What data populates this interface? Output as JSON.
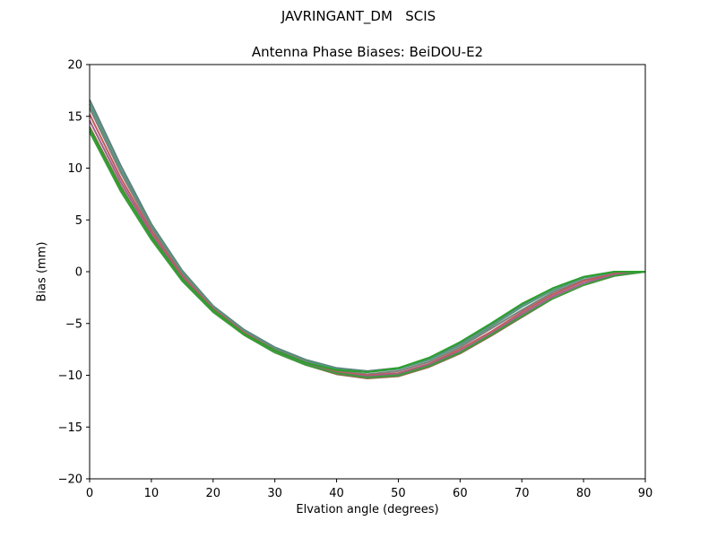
{
  "figure": {
    "suptitle": "JAVRINGANT_DM   SCIS"
  },
  "chart_data": {
    "type": "line",
    "title": "Antenna Phase Biases: BeiDOU-E2",
    "xlabel": "Elvation angle (degrees)",
    "ylabel": "Bias (mm)",
    "xlim": [
      0,
      90
    ],
    "ylim": [
      -20,
      20
    ],
    "xticks": [
      0,
      10,
      20,
      30,
      40,
      50,
      60,
      70,
      80,
      90
    ],
    "yticks": [
      -20,
      -15,
      -10,
      -5,
      0,
      5,
      10,
      15,
      20
    ],
    "xtick_labels": [
      "0",
      "10",
      "20",
      "30",
      "40",
      "50",
      "60",
      "70",
      "80",
      "90"
    ],
    "ytick_labels": [
      "−20",
      "−15",
      "−10",
      "−5",
      "0",
      "5",
      "10",
      "15",
      "20"
    ],
    "grid": false,
    "legend": "none",
    "x": [
      0,
      5,
      10,
      15,
      20,
      25,
      30,
      35,
      40,
      45,
      50,
      55,
      60,
      65,
      70,
      75,
      80,
      85,
      90
    ],
    "series": [
      {
        "color": "#5f7f7f",
        "values": [
          16.6,
          10.3,
          4.6,
          0.1,
          -3.3,
          -5.6,
          -7.3,
          -8.5,
          -9.3,
          -9.6,
          -9.3,
          -8.4,
          -6.9,
          -5.1,
          -3.2,
          -1.6,
          -0.5,
          0.0,
          0.0
        ]
      },
      {
        "color": "#4f9a7a",
        "values": [
          16.2,
          9.9,
          4.4,
          0.0,
          -3.4,
          -5.7,
          -7.4,
          -8.6,
          -9.4,
          -9.7,
          -9.4,
          -8.5,
          -7.1,
          -5.3,
          -3.4,
          -1.8,
          -0.6,
          -0.1,
          0.0
        ]
      },
      {
        "color": "#7f7f7f",
        "values": [
          15.8,
          9.6,
          4.2,
          -0.2,
          -3.5,
          -5.8,
          -7.5,
          -8.7,
          -9.6,
          -9.9,
          -9.6,
          -8.7,
          -7.3,
          -5.5,
          -3.7,
          -2.0,
          -0.8,
          -0.2,
          0.0
        ]
      },
      {
        "color": "#c05a5a",
        "values": [
          15.2,
          9.1,
          3.9,
          -0.4,
          -3.6,
          -5.9,
          -7.6,
          -8.8,
          -9.7,
          -10.0,
          -9.8,
          -8.9,
          -7.5,
          -5.8,
          -3.9,
          -2.2,
          -0.9,
          -0.2,
          0.0
        ]
      },
      {
        "color": "#a0608f",
        "values": [
          14.6,
          8.7,
          3.6,
          -0.6,
          -3.7,
          -6.0,
          -7.7,
          -8.9,
          -9.8,
          -10.1,
          -9.9,
          -9.0,
          -7.7,
          -6.0,
          -4.1,
          -2.4,
          -1.1,
          -0.3,
          0.0
        ]
      },
      {
        "color": "#8a6e4e",
        "values": [
          14.0,
          8.3,
          3.3,
          -0.8,
          -3.8,
          -6.1,
          -7.8,
          -9.0,
          -9.9,
          -10.3,
          -10.1,
          -9.2,
          -7.9,
          -6.2,
          -4.4,
          -2.6,
          -1.3,
          -0.4,
          0.0
        ]
      },
      {
        "color": "#3f9a3f",
        "values": [
          13.5,
          7.8,
          3.1,
          -0.9,
          -3.9,
          -6.1,
          -7.8,
          -9.0,
          -9.8,
          -10.2,
          -10.0,
          -9.1,
          -7.8,
          -6.1,
          -4.3,
          -2.6,
          -1.3,
          -0.4,
          0.0
        ]
      },
      {
        "color": "#2ca02c",
        "values": [
          13.8,
          8.1,
          3.4,
          -0.7,
          -3.7,
          -6.0,
          -7.6,
          -8.8,
          -9.5,
          -9.7,
          -9.3,
          -8.3,
          -6.8,
          -5.0,
          -3.1,
          -1.6,
          -0.5,
          0.0,
          0.0
        ]
      }
    ]
  }
}
